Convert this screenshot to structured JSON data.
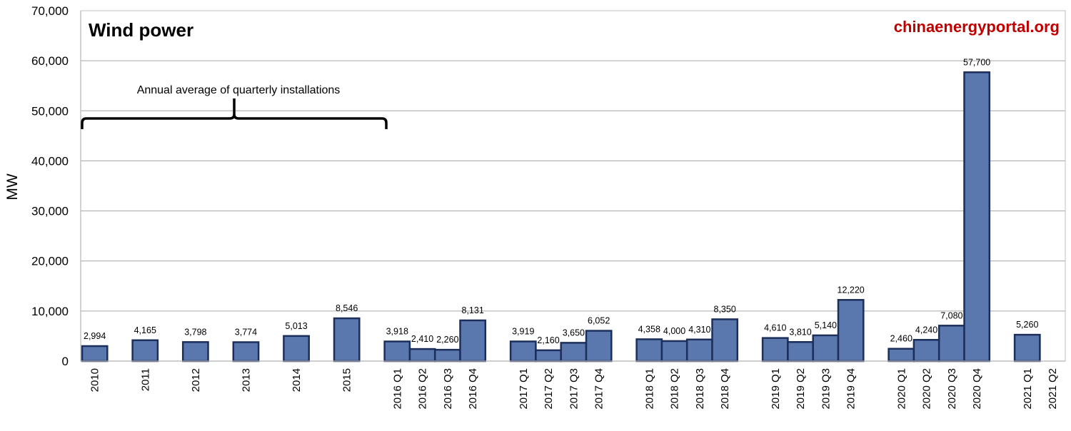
{
  "colors": {
    "bar_fill": "#5b78ae",
    "bar_stroke": "#1c2e5a",
    "grid": "#a6a6a6",
    "source_text": "#c00000"
  },
  "chart_data": {
    "type": "bar",
    "title": "Wind power",
    "source": "chinaenergyportal.org",
    "ylabel": "MW",
    "xlabel": "",
    "ylim": [
      0,
      70000
    ],
    "yticks": [
      0,
      10000,
      20000,
      30000,
      40000,
      50000,
      60000,
      70000
    ],
    "grid": true,
    "annotation": "Annual average of quarterly installations",
    "groups": [
      {
        "categories": [
          "2010",
          "2011",
          "2012",
          "2013",
          "2014",
          "2015"
        ],
        "values": [
          2994,
          4165,
          3798,
          3774,
          5013,
          8546
        ],
        "labels": [
          "2,994",
          "4,165",
          "3,798",
          "3,774",
          "5,013",
          "8,546"
        ]
      },
      {
        "categories": [
          "2016 Q1",
          "2016 Q2",
          "2016 Q3",
          "2016 Q4"
        ],
        "values": [
          3918,
          2410,
          2260,
          8131
        ],
        "labels": [
          "3,918",
          "2,410",
          "2,260",
          "8,131"
        ]
      },
      {
        "categories": [
          "2017 Q1",
          "2017 Q2",
          "2017 Q3",
          "2017 Q4"
        ],
        "values": [
          3919,
          2160,
          3650,
          6052
        ],
        "labels": [
          "3,919",
          "2,160",
          "3,650",
          "6,052"
        ]
      },
      {
        "categories": [
          "2018 Q1",
          "2018 Q2",
          "2018 Q3",
          "2018 Q4"
        ],
        "values": [
          4358,
          4000,
          4310,
          8350
        ],
        "labels": [
          "4,358",
          "4,000",
          "4,310",
          "8,350"
        ]
      },
      {
        "categories": [
          "2019 Q1",
          "2019 Q2",
          "2019 Q3",
          "2019 Q4"
        ],
        "values": [
          4610,
          3810,
          5140,
          12220
        ],
        "labels": [
          "4,610",
          "3,810",
          "5,140",
          "12,220"
        ]
      },
      {
        "categories": [
          "2020 Q1",
          "2020 Q2",
          "2020 Q3",
          "2020 Q4"
        ],
        "values": [
          2460,
          4240,
          7080,
          57700
        ],
        "labels": [
          "2,460",
          "4,240",
          "7,080",
          "57,700"
        ]
      },
      {
        "categories": [
          "2021 Q1",
          "2021 Q2"
        ],
        "values": [
          5260,
          null
        ],
        "labels": [
          "5,260",
          ""
        ]
      }
    ]
  }
}
